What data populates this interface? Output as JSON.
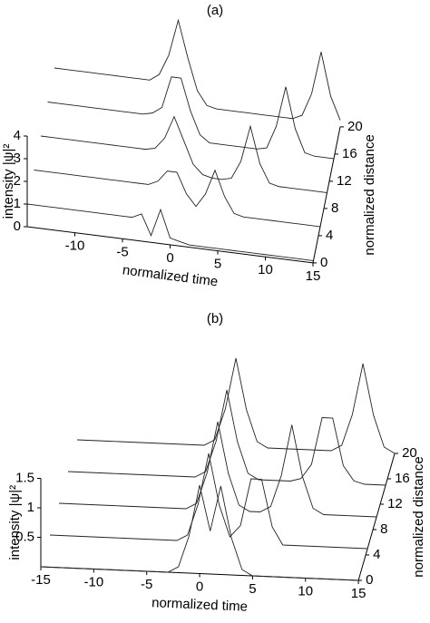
{
  "chart_data": [
    {
      "type": "surface",
      "label": "(a)",
      "xlabel": "normalized time",
      "ylabel": "intensity |ψ|²",
      "zlabel": "normalized distance",
      "x": [
        -15,
        -14,
        -13,
        -12,
        -11,
        -10,
        -9,
        -8,
        -7,
        -6,
        -5,
        -4,
        -3,
        -2,
        -1,
        0,
        1,
        2,
        3,
        4,
        5,
        6,
        7,
        8,
        9,
        10,
        11,
        12,
        13,
        14,
        15
      ],
      "z": [
        0,
        5,
        10,
        15,
        20
      ],
      "values": [
        [
          1,
          1,
          1,
          1,
          1,
          1,
          1,
          1,
          1,
          1,
          1,
          1,
          1.2,
          0.3,
          1.5,
          0.3,
          0.2,
          0.1,
          0.1,
          0.1,
          0.1,
          0.1,
          0.1,
          0.1,
          0.1,
          0.1,
          0.1,
          0.1,
          0.1,
          0.1,
          0.1
        ],
        [
          1,
          1,
          1,
          1,
          1,
          1,
          1,
          1,
          1,
          1,
          1,
          1,
          1,
          1.2,
          1.7,
          1.7,
          0.8,
          0.3,
          0.9,
          2.0,
          0.9,
          0.2,
          0.1,
          0.1,
          0.1,
          0.1,
          0.1,
          0.1,
          0.1,
          0.1,
          0.1
        ],
        [
          1,
          1,
          1,
          1,
          1,
          1,
          1,
          1,
          1,
          1,
          1,
          1,
          1.1,
          1.6,
          2.6,
          1.6,
          0.6,
          0.2,
          0.1,
          0.1,
          0.2,
          1.0,
          2.6,
          1.0,
          0.2,
          0.1,
          0.1,
          0.1,
          0.1,
          0.1,
          0.1
        ],
        [
          1,
          1,
          1,
          1,
          1,
          1,
          1,
          1,
          1,
          1,
          1,
          1.1,
          1.4,
          2.8,
          2.8,
          1.4,
          0.4,
          0.1,
          0.1,
          0.1,
          0.1,
          0.1,
          0.1,
          0.2,
          1.2,
          3.0,
          1.2,
          0.2,
          0.1,
          0.1,
          0.1
        ],
        [
          1,
          1,
          1,
          1,
          1,
          1,
          1,
          1,
          1,
          1,
          1,
          1.3,
          2.2,
          3.8,
          2.2,
          0.8,
          0.2,
          0.1,
          0.1,
          0.1,
          0.1,
          0.1,
          0.1,
          0.1,
          0.1,
          0.1,
          0.3,
          1.3,
          3.2,
          1.3,
          0.3
        ]
      ],
      "xlim": [
        -15,
        15
      ],
      "xticks": [
        -10,
        -5,
        0,
        5,
        10,
        15
      ],
      "ylim": [
        0,
        4
      ],
      "yticks": [
        0,
        1,
        2,
        3,
        4
      ],
      "zlim": [
        0,
        20
      ],
      "zticks": [
        0,
        4,
        8,
        12,
        16,
        20
      ],
      "color": "#222222"
    },
    {
      "type": "surface",
      "label": "(b)",
      "xlabel": "normalized time",
      "ylabel": "intensity |ψ|²",
      "zlabel": "normalized distance",
      "x": [
        -15,
        -14,
        -13,
        -12,
        -11,
        -10,
        -9,
        -8,
        -7,
        -6,
        -5,
        -4,
        -3,
        -2,
        -1,
        0,
        1,
        2,
        3,
        4,
        5,
        6,
        7,
        8,
        9,
        10,
        11,
        12,
        13,
        14,
        15
      ],
      "z": [
        0,
        5,
        10,
        15,
        20
      ],
      "values": [
        [
          0,
          0,
          0,
          0,
          0,
          0,
          0,
          0,
          0,
          0,
          0,
          0,
          0,
          0.1,
          0.63,
          1.5,
          0.73,
          1.5,
          0.63,
          0.1,
          0,
          0,
          0,
          0,
          0,
          0,
          0,
          0,
          0,
          0,
          0
        ],
        [
          0,
          0,
          0,
          0,
          0,
          0,
          0,
          0,
          0,
          0,
          0,
          0,
          0,
          0.1,
          0.63,
          1.5,
          0.63,
          0.1,
          0.3,
          1.1,
          1.1,
          0.3,
          0,
          0,
          0,
          0,
          0,
          0,
          0,
          0,
          0
        ],
        [
          0,
          0,
          0,
          0,
          0,
          0,
          0,
          0,
          0,
          0,
          0,
          0,
          0,
          0.1,
          0.63,
          1.5,
          0.63,
          0.1,
          0,
          0,
          0.1,
          0.63,
          1.5,
          0.63,
          0.1,
          0,
          0,
          0,
          0,
          0,
          0
        ],
        [
          0,
          0,
          0,
          0,
          0,
          0,
          0,
          0,
          0,
          0,
          0,
          0,
          0,
          0.1,
          0.63,
          1.5,
          0.63,
          0.1,
          0,
          0,
          0,
          0,
          0.05,
          0.3,
          1.1,
          1.1,
          0.3,
          0.05,
          0,
          0,
          0
        ],
        [
          0,
          0,
          0,
          0,
          0,
          0,
          0,
          0,
          0,
          0,
          0,
          0,
          0,
          0.1,
          0.63,
          1.5,
          0.63,
          0.1,
          0,
          0,
          0,
          0,
          0,
          0,
          0,
          0.1,
          0.63,
          1.5,
          0.63,
          0.1,
          0
        ]
      ],
      "xlim": [
        -15,
        15
      ],
      "xticks": [
        -15,
        -10,
        -5,
        0,
        5,
        10,
        15
      ],
      "ylim": [
        0,
        1.5
      ],
      "yticks": [
        0.5,
        1,
        1.5
      ],
      "zlim": [
        0,
        20
      ],
      "zticks": [
        0,
        4,
        8,
        12,
        16,
        20
      ],
      "color": "#222222"
    }
  ]
}
